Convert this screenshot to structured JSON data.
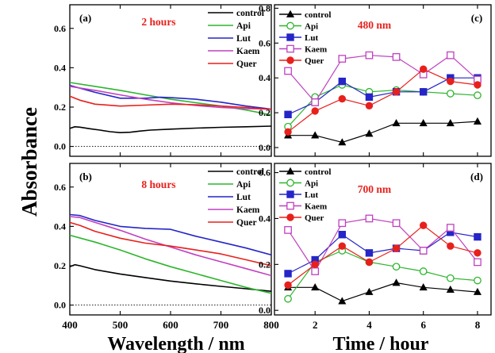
{
  "figure": {
    "ylabel": "Absorbance",
    "xlabel_left": "Wavelength / nm",
    "xlabel_right": "Time / hour"
  },
  "colors": {
    "control": "#000000",
    "Api": "#2db52d",
    "Lut": "#2525c8",
    "Kaem": "#c040c0",
    "Quer": "#e8201c",
    "annotation": "#e8201c"
  },
  "chart_data": [
    {
      "id": "a",
      "type": "line",
      "panel_label": "(a)",
      "annotation": "2 hours",
      "x_ticks": [
        "400",
        "500",
        "600",
        "700",
        "800"
      ],
      "y_ticks": [
        "0.0",
        "0.2",
        "0.4",
        "0.6"
      ],
      "xlim": [
        400,
        800
      ],
      "ylim": [
        -0.05,
        0.72
      ],
      "legend_position": "top-right",
      "baseline": 0,
      "series": [
        {
          "name": "control",
          "x": [
            400,
            410,
            420,
            440,
            460,
            480,
            500,
            520,
            540,
            560,
            600,
            650,
            700,
            750,
            800
          ],
          "y": [
            0.092,
            0.1,
            0.098,
            0.09,
            0.083,
            0.075,
            0.07,
            0.072,
            0.078,
            0.083,
            0.088,
            0.093,
            0.097,
            0.1,
            0.103
          ]
        },
        {
          "name": "Api",
          "x": [
            400,
            450,
            500,
            550,
            600,
            650,
            700,
            750,
            800
          ],
          "y": [
            0.325,
            0.305,
            0.285,
            0.262,
            0.24,
            0.222,
            0.205,
            0.185,
            0.16
          ]
        },
        {
          "name": "Lut",
          "x": [
            400,
            450,
            500,
            550,
            580,
            600,
            650,
            700,
            750,
            800
          ],
          "y": [
            0.31,
            0.275,
            0.245,
            0.245,
            0.25,
            0.248,
            0.24,
            0.225,
            0.205,
            0.19
          ]
        },
        {
          "name": "Kaem",
          "x": [
            400,
            450,
            500,
            550,
            600,
            650,
            700,
            750,
            800
          ],
          "y": [
            0.305,
            0.285,
            0.262,
            0.24,
            0.222,
            0.208,
            0.198,
            0.192,
            0.19
          ]
        },
        {
          "name": "Quer",
          "x": [
            400,
            420,
            450,
            500,
            550,
            600,
            650,
            700,
            750,
            800
          ],
          "y": [
            0.255,
            0.235,
            0.215,
            0.205,
            0.21,
            0.215,
            0.212,
            0.205,
            0.198,
            0.188
          ]
        }
      ]
    },
    {
      "id": "b",
      "type": "line",
      "panel_label": "(b)",
      "annotation": "8 hours",
      "x_ticks": [
        "400",
        "500",
        "600",
        "700",
        "800"
      ],
      "y_ticks": [
        "0.0",
        "0.2",
        "0.4",
        "0.6"
      ],
      "xlim": [
        400,
        800
      ],
      "ylim": [
        -0.05,
        0.72
      ],
      "legend_position": "top-right",
      "baseline": 0,
      "series": [
        {
          "name": "control",
          "x": [
            400,
            410,
            420,
            450,
            500,
            550,
            600,
            650,
            700,
            750,
            800
          ],
          "y": [
            0.195,
            0.205,
            0.2,
            0.18,
            0.158,
            0.14,
            0.122,
            0.108,
            0.095,
            0.083,
            0.07
          ]
        },
        {
          "name": "Api",
          "x": [
            400,
            450,
            500,
            550,
            600,
            650,
            700,
            750,
            800
          ],
          "y": [
            0.355,
            0.32,
            0.28,
            0.235,
            0.195,
            0.16,
            0.125,
            0.09,
            0.06
          ]
        },
        {
          "name": "Lut",
          "x": [
            400,
            420,
            450,
            500,
            550,
            600,
            650,
            700,
            750,
            800
          ],
          "y": [
            0.46,
            0.455,
            0.43,
            0.4,
            0.39,
            0.385,
            0.35,
            0.32,
            0.29,
            0.255
          ]
        },
        {
          "name": "Kaem",
          "x": [
            400,
            420,
            450,
            500,
            550,
            600,
            650,
            700,
            750,
            800
          ],
          "y": [
            0.45,
            0.445,
            0.42,
            0.38,
            0.335,
            0.295,
            0.255,
            0.22,
            0.185,
            0.15
          ]
        },
        {
          "name": "Quer",
          "x": [
            400,
            420,
            450,
            500,
            550,
            600,
            650,
            700,
            750,
            800
          ],
          "y": [
            0.42,
            0.405,
            0.375,
            0.34,
            0.315,
            0.3,
            0.28,
            0.26,
            0.23,
            0.2
          ]
        }
      ]
    },
    {
      "id": "c",
      "type": "line",
      "panel_label": "(c)",
      "annotation": "480 nm",
      "x_ticks": [
        "2",
        "4",
        "6",
        "8"
      ],
      "y_ticks": [
        "0.0",
        "0.2",
        "0.4",
        "0.6",
        "0.8"
      ],
      "xlim": [
        0.5,
        8.5
      ],
      "ylim": [
        -0.05,
        0.82
      ],
      "legend_position": "top-left",
      "series": [
        {
          "name": "control",
          "marker": "triangle-filled",
          "x": [
            1,
            2,
            3,
            4,
            5,
            6,
            7,
            8
          ],
          "y": [
            0.07,
            0.07,
            0.03,
            0.08,
            0.14,
            0.14,
            0.14,
            0.15
          ]
        },
        {
          "name": "Api",
          "marker": "circle-open",
          "x": [
            1,
            2,
            3,
            4,
            5,
            6,
            7,
            8
          ],
          "y": [
            0.12,
            0.29,
            0.36,
            0.32,
            0.33,
            0.32,
            0.31,
            0.3
          ]
        },
        {
          "name": "Lut",
          "marker": "square-filled",
          "x": [
            1,
            2,
            3,
            4,
            5,
            6,
            7,
            8
          ],
          "y": [
            0.19,
            0.26,
            0.38,
            0.29,
            0.32,
            0.32,
            0.4,
            0.4
          ]
        },
        {
          "name": "Kaem",
          "marker": "square-open",
          "x": [
            1,
            2,
            3,
            4,
            5,
            6,
            7,
            8
          ],
          "y": [
            0.44,
            0.26,
            0.51,
            0.53,
            0.52,
            0.42,
            0.53,
            0.39
          ]
        },
        {
          "name": "Quer",
          "marker": "circle-filled",
          "x": [
            1,
            2,
            3,
            4,
            5,
            6,
            7,
            8
          ],
          "y": [
            0.09,
            0.21,
            0.28,
            0.24,
            0.32,
            0.45,
            0.38,
            0.36
          ]
        }
      ]
    },
    {
      "id": "d",
      "type": "line",
      "panel_label": "(d)",
      "annotation": "700 nm",
      "x_ticks": [
        "2",
        "4",
        "6",
        "8"
      ],
      "y_ticks": [
        "0.0",
        "0.2",
        "0.4",
        "0.6"
      ],
      "xlim": [
        0.5,
        8.5
      ],
      "ylim": [
        -0.02,
        0.64
      ],
      "legend_position": "top-left",
      "series": [
        {
          "name": "control",
          "marker": "triangle-filled",
          "x": [
            1,
            2,
            3,
            4,
            5,
            6,
            7,
            8
          ],
          "y": [
            0.1,
            0.1,
            0.04,
            0.08,
            0.12,
            0.1,
            0.09,
            0.08
          ]
        },
        {
          "name": "Api",
          "marker": "circle-open",
          "x": [
            1,
            2,
            3,
            4,
            5,
            6,
            7,
            8
          ],
          "y": [
            0.05,
            0.21,
            0.26,
            0.21,
            0.19,
            0.17,
            0.14,
            0.13
          ]
        },
        {
          "name": "Lut",
          "marker": "square-filled",
          "x": [
            1,
            2,
            3,
            4,
            5,
            6,
            7,
            8
          ],
          "y": [
            0.16,
            0.22,
            0.33,
            0.25,
            0.27,
            0.26,
            0.34,
            0.32
          ]
        },
        {
          "name": "Kaem",
          "marker": "square-open",
          "x": [
            1,
            2,
            3,
            4,
            5,
            6,
            7,
            8
          ],
          "y": [
            0.35,
            0.17,
            0.38,
            0.4,
            0.38,
            0.26,
            0.36,
            0.21
          ]
        },
        {
          "name": "Quer",
          "marker": "circle-filled",
          "x": [
            1,
            2,
            3,
            4,
            5,
            6,
            7,
            8
          ],
          "y": [
            0.11,
            0.2,
            0.28,
            0.21,
            0.27,
            0.37,
            0.28,
            0.25
          ]
        }
      ]
    }
  ]
}
